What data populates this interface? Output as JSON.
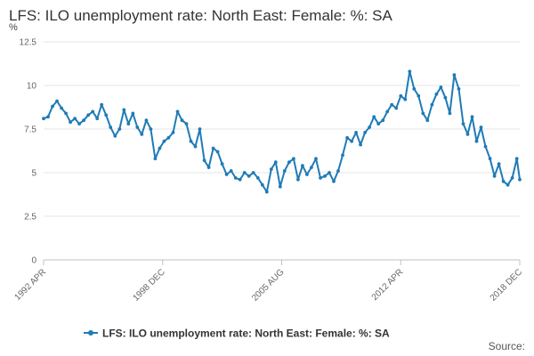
{
  "chart_data": {
    "type": "line",
    "title": "LFS: ILO unemployment rate: North East: Female: %: SA",
    "unit_label": "%",
    "xlabel": "",
    "ylabel": "",
    "x_range": [
      "1992 APR",
      "2018 DEC"
    ],
    "ylim": [
      0,
      12.5
    ],
    "y_ticks": [
      "0",
      "2.5",
      "5",
      "7.5",
      "10",
      "12.5"
    ],
    "x_ticks": [
      "1992 APR",
      "1998 DEC",
      "2005 AUG",
      "2012 APR",
      "2018 DEC"
    ],
    "grid": true,
    "legend_position": "bottom",
    "color": "#1f7bb6",
    "series": [
      {
        "name": "LFS: ILO unemployment rate: North East: Female: %: SA",
        "points": [
          [
            "1992 APR",
            8.1
          ],
          [
            "1992 JUL",
            8.2
          ],
          [
            "1992 OCT",
            8.8
          ],
          [
            "1993 JAN",
            9.1
          ],
          [
            "1993 APR",
            8.7
          ],
          [
            "1993 JUL",
            8.4
          ],
          [
            "1993 OCT",
            7.9
          ],
          [
            "1994 JAN",
            8.1
          ],
          [
            "1994 APR",
            7.8
          ],
          [
            "1994 JUL",
            8.0
          ],
          [
            "1994 OCT",
            8.3
          ],
          [
            "1995 JAN",
            8.5
          ],
          [
            "1995 APR",
            8.1
          ],
          [
            "1995 JUL",
            8.9
          ],
          [
            "1995 OCT",
            8.3
          ],
          [
            "1996 JAN",
            7.6
          ],
          [
            "1996 APR",
            7.1
          ],
          [
            "1996 JUL",
            7.5
          ],
          [
            "1996 OCT",
            8.6
          ],
          [
            "1997 JAN",
            7.8
          ],
          [
            "1997 APR",
            8.4
          ],
          [
            "1997 JUL",
            7.6
          ],
          [
            "1997 OCT",
            7.2
          ],
          [
            "1998 JAN",
            8.0
          ],
          [
            "1998 APR",
            7.5
          ],
          [
            "1998 JUL",
            5.8
          ],
          [
            "1998 OCT",
            6.4
          ],
          [
            "1999 JAN",
            6.8
          ],
          [
            "1999 APR",
            7.0
          ],
          [
            "1999 JUL",
            7.3
          ],
          [
            "1999 OCT",
            8.5
          ],
          [
            "2000 JAN",
            8.0
          ],
          [
            "2000 APR",
            7.8
          ],
          [
            "2000 JUL",
            6.8
          ],
          [
            "2000 OCT",
            6.5
          ],
          [
            "2001 JAN",
            7.5
          ],
          [
            "2001 APR",
            5.7
          ],
          [
            "2001 JUL",
            5.3
          ],
          [
            "2001 OCT",
            6.4
          ],
          [
            "2002 JAN",
            6.2
          ],
          [
            "2002 APR",
            5.5
          ],
          [
            "2002 JUL",
            4.9
          ],
          [
            "2002 OCT",
            5.1
          ],
          [
            "2003 JAN",
            4.7
          ],
          [
            "2003 APR",
            4.6
          ],
          [
            "2003 JUL",
            5.0
          ],
          [
            "2003 OCT",
            4.8
          ],
          [
            "2004 JAN",
            5.0
          ],
          [
            "2004 APR",
            4.7
          ],
          [
            "2004 JUL",
            4.3
          ],
          [
            "2004 OCT",
            3.9
          ],
          [
            "2005 JAN",
            5.2
          ],
          [
            "2005 APR",
            5.6
          ],
          [
            "2005 JUL",
            4.2
          ],
          [
            "2005 OCT",
            5.1
          ],
          [
            "2006 JAN",
            5.6
          ],
          [
            "2006 APR",
            5.8
          ],
          [
            "2006 JUL",
            4.6
          ],
          [
            "2006 OCT",
            5.4
          ],
          [
            "2007 JAN",
            4.9
          ],
          [
            "2007 APR",
            5.3
          ],
          [
            "2007 JUL",
            5.8
          ],
          [
            "2007 OCT",
            4.7
          ],
          [
            "2008 JAN",
            4.8
          ],
          [
            "2008 APR",
            5.0
          ],
          [
            "2008 JUL",
            4.5
          ],
          [
            "2008 OCT",
            5.1
          ],
          [
            "2009 JAN",
            6.0
          ],
          [
            "2009 APR",
            7.0
          ],
          [
            "2009 JUL",
            6.8
          ],
          [
            "2009 OCT",
            7.3
          ],
          [
            "2010 JAN",
            6.6
          ],
          [
            "2010 APR",
            7.3
          ],
          [
            "2010 JUL",
            7.6
          ],
          [
            "2010 OCT",
            8.2
          ],
          [
            "2011 JAN",
            7.8
          ],
          [
            "2011 APR",
            8.0
          ],
          [
            "2011 JUL",
            8.5
          ],
          [
            "2011 OCT",
            8.9
          ],
          [
            "2012 JAN",
            8.7
          ],
          [
            "2012 APR",
            9.4
          ],
          [
            "2012 JUL",
            9.2
          ],
          [
            "2012 OCT",
            10.8
          ],
          [
            "2013 JAN",
            9.8
          ],
          [
            "2013 APR",
            9.4
          ],
          [
            "2013 JUL",
            8.4
          ],
          [
            "2013 OCT",
            8.0
          ],
          [
            "2014 JAN",
            8.9
          ],
          [
            "2014 APR",
            9.5
          ],
          [
            "2014 JUL",
            9.9
          ],
          [
            "2014 OCT",
            9.3
          ],
          [
            "2015 JAN",
            8.4
          ],
          [
            "2015 APR",
            10.6
          ],
          [
            "2015 JUL",
            9.8
          ],
          [
            "2015 OCT",
            7.8
          ],
          [
            "2016 JAN",
            7.2
          ],
          [
            "2016 APR",
            8.2
          ],
          [
            "2016 JUL",
            6.8
          ],
          [
            "2016 OCT",
            7.6
          ],
          [
            "2017 JAN",
            6.5
          ],
          [
            "2017 APR",
            5.8
          ],
          [
            "2017 JUL",
            4.8
          ],
          [
            "2017 OCT",
            5.5
          ],
          [
            "2018 JAN",
            4.5
          ],
          [
            "2018 APR",
            4.3
          ],
          [
            "2018 JUL",
            4.7
          ],
          [
            "2018 OCT",
            5.8
          ],
          [
            "2018 DEC",
            4.6
          ]
        ]
      }
    ]
  },
  "footer": {
    "source_label": "Source:"
  }
}
